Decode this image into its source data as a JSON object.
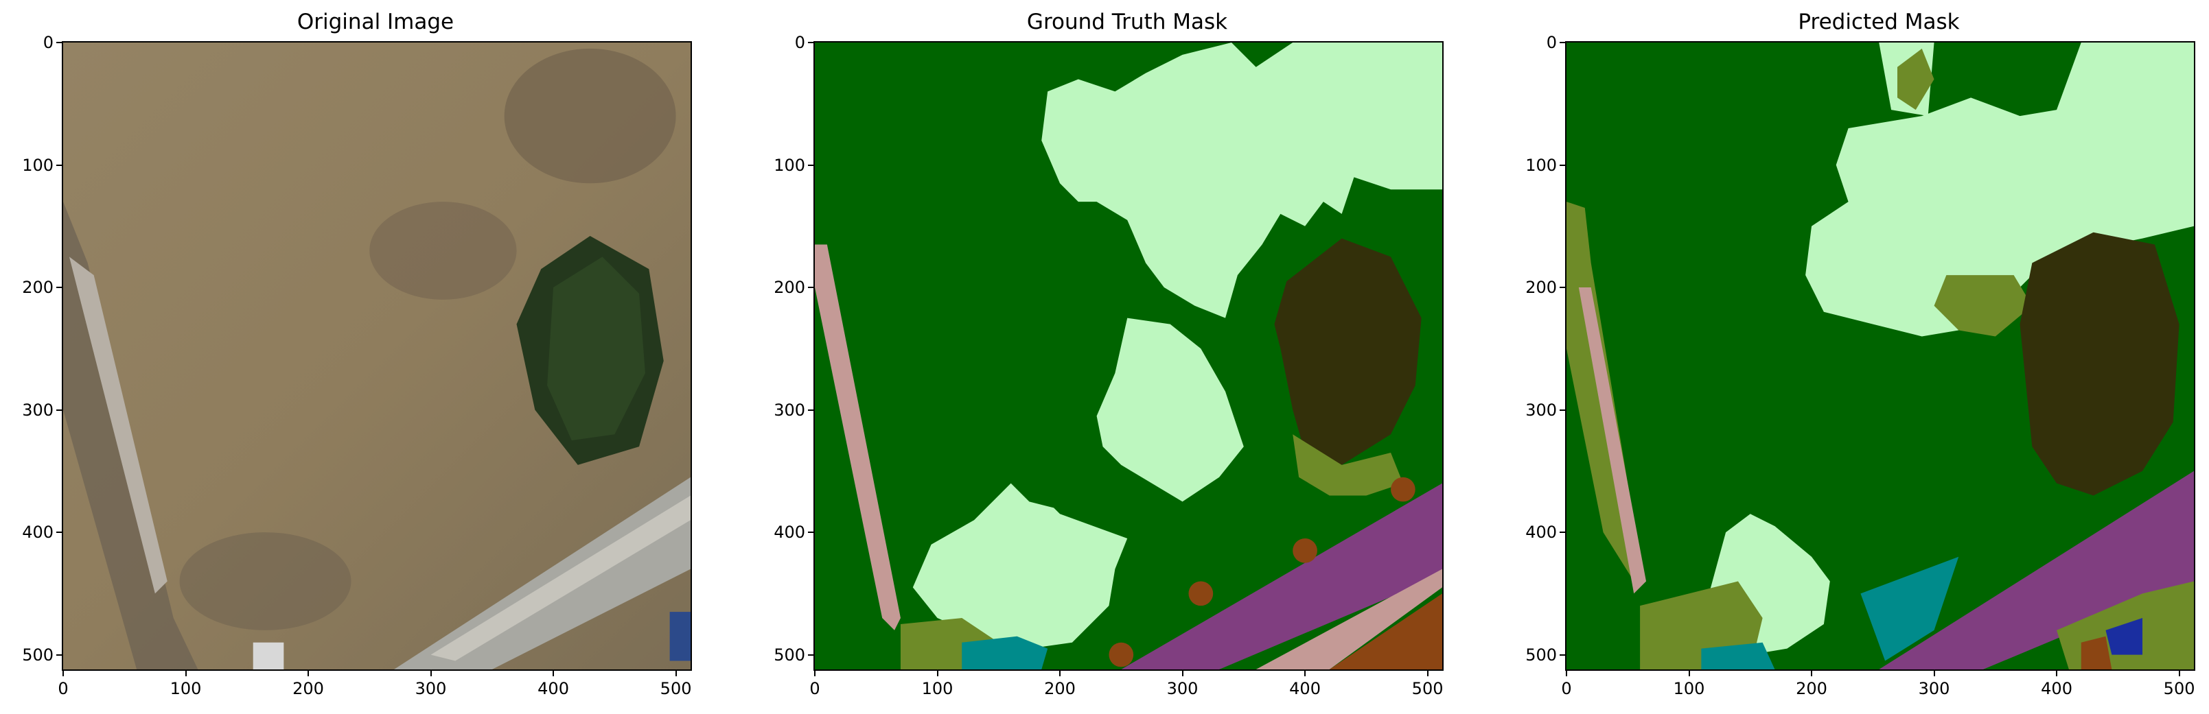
{
  "panels": [
    {
      "title": "Original Image"
    },
    {
      "title": "Ground Truth Mask"
    },
    {
      "title": "Predicted Mask"
    }
  ],
  "axes": {
    "x_ticks": [
      "0",
      "100",
      "200",
      "300",
      "400",
      "500"
    ],
    "y_ticks": [
      "0",
      "100",
      "200",
      "300",
      "400",
      "500"
    ],
    "x_tick_values": [
      0,
      100,
      200,
      300,
      400,
      500
    ],
    "y_tick_values": [
      0,
      100,
      200,
      300,
      400,
      500
    ],
    "xlim": [
      0,
      512
    ],
    "ylim": [
      512,
      0
    ]
  },
  "colors": {
    "dark_green": "#006400",
    "light_green": "#bdf7bf",
    "dark_brown": "#33300a",
    "olive": "#6e8b28",
    "pink_path": "#c49a96",
    "purple": "#803e80",
    "teal": "#008b8b",
    "orange_brown": "#8b4513",
    "grass": "#8a7c5c"
  }
}
